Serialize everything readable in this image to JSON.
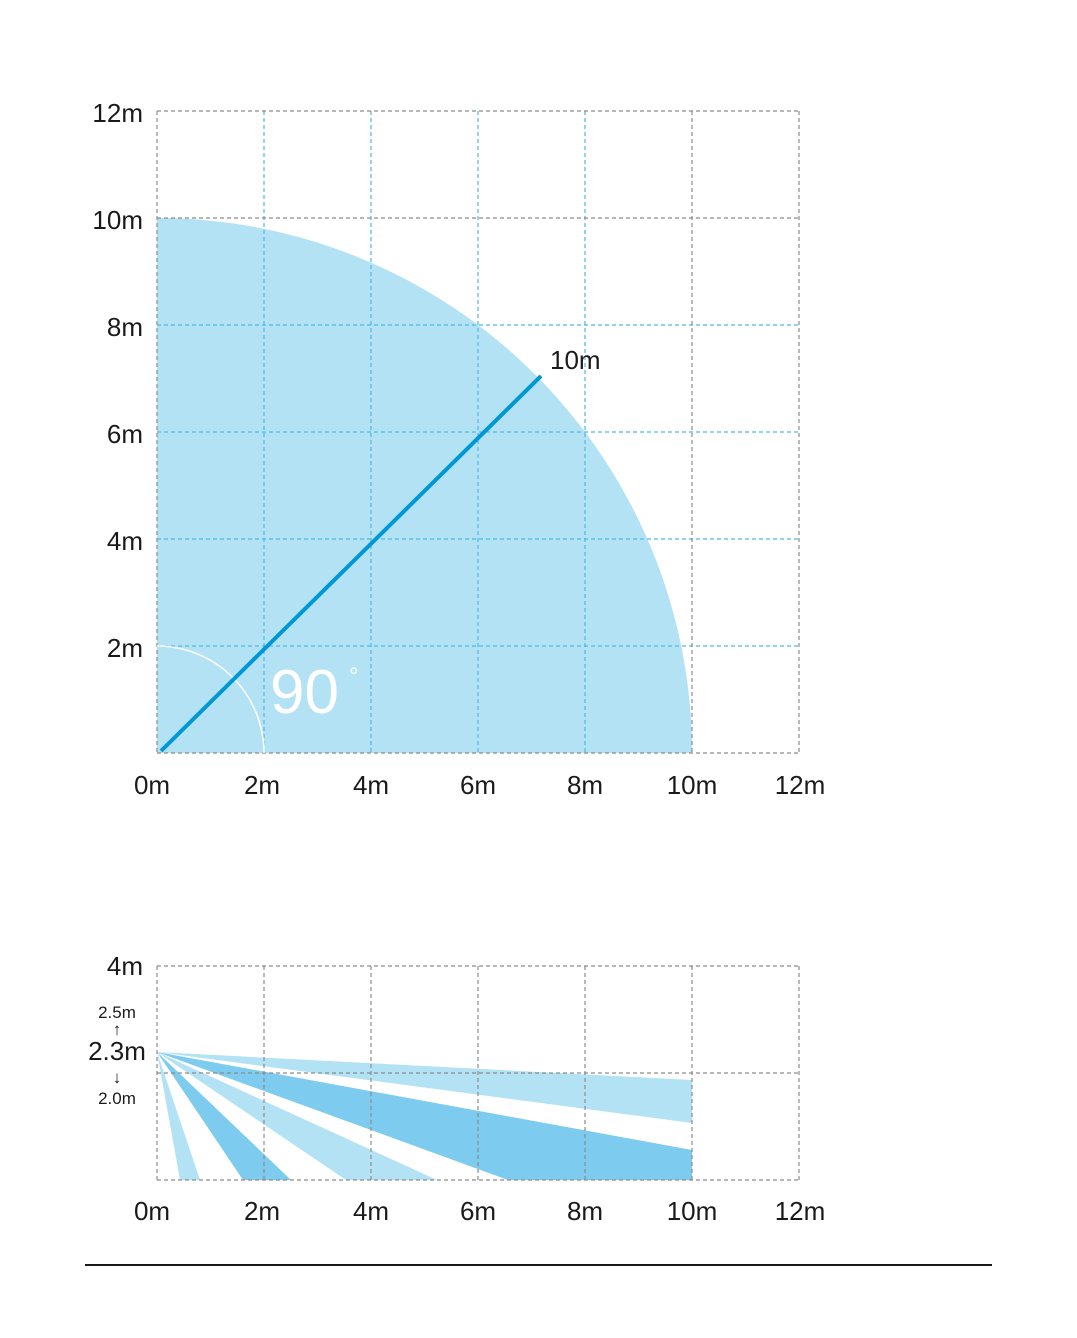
{
  "colors": {
    "zone_light": "#b3e2f5",
    "zone_dark": "#7dcbee",
    "radius_line": "#0097d7",
    "grid": "#8c8c8c",
    "grid_on_zone": "#4fb8e3"
  },
  "top_view": {
    "x_ticks": [
      "0m",
      "2m",
      "4m",
      "6m",
      "8m",
      "10m",
      "12m"
    ],
    "y_ticks": [
      "2m",
      "4m",
      "6m",
      "8m",
      "10m",
      "12m"
    ],
    "range_label": "10m",
    "angle_label": "90",
    "angle_unit": "°",
    "detection_radius_m": 10,
    "axis_max_m": 12
  },
  "side_view": {
    "x_ticks": [
      "0m",
      "2m",
      "4m",
      "6m",
      "8m",
      "10m",
      "12m"
    ],
    "y_top_label": "4m",
    "height_max_label": "2.5m",
    "height_label": "2.3m",
    "height_min_label": "2.0m",
    "max_range_m": 10,
    "axis_max_x_m": 12,
    "axis_max_y_m": 4
  }
}
